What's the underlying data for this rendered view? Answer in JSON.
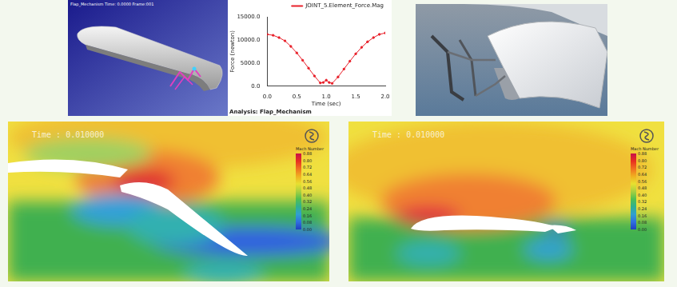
{
  "render": {
    "caption": "Flap_Mechanism   Time: 0.0000   Frame:001"
  },
  "chart_data": {
    "type": "line",
    "title": "Analysis: Flap_Mechanism",
    "x_label": "Time (sec)",
    "y_label": "Force (newton)",
    "x": [
      0.0,
      0.1,
      0.2,
      0.3,
      0.4,
      0.5,
      0.6,
      0.7,
      0.8,
      0.9,
      0.95,
      1.0,
      1.05,
      1.1,
      1.2,
      1.3,
      1.4,
      1.5,
      1.6,
      1.7,
      1.8,
      1.9,
      2.0
    ],
    "series": [
      {
        "name": "JOINT_5.Element_Force.Mag",
        "color": "#e8202a",
        "values": [
          11200,
          11000,
          10500,
          9800,
          8600,
          7200,
          5600,
          3900,
          2200,
          700,
          800,
          1300,
          800,
          600,
          2000,
          3700,
          5400,
          7000,
          8400,
          9600,
          10500,
          11200,
          11500
        ]
      }
    ],
    "xlim": [
      0,
      2
    ],
    "xticks": [
      {
        "value": 0,
        "label": "0.0"
      },
      {
        "value": 0.5,
        "label": "0.5"
      },
      {
        "value": 1,
        "label": "1.0"
      },
      {
        "value": 1.5,
        "label": "1.5"
      },
      {
        "value": 2,
        "label": "2.0"
      }
    ],
    "ylim": [
      0,
      15000
    ],
    "yticks": [
      {
        "value": 0,
        "label": "0.0"
      },
      {
        "value": 5000,
        "label": "5000.0"
      },
      {
        "value": 10000,
        "label": "10000.0"
      },
      {
        "value": 15000,
        "label": "15000.0"
      }
    ],
    "grid": false,
    "legend": "top",
    "marker": "circle"
  },
  "cfd": [
    {
      "time_label": "Time : 0.010000",
      "colorbar_title": "Mach Number",
      "colorbar_labels": [
        "0.88",
        "0.80",
        "0.72",
        "0.64",
        "0.56",
        "0.48",
        "0.40",
        "0.32",
        "0.24",
        "0.16",
        "0.08",
        "0.00"
      ]
    },
    {
      "time_label": "Time : 0.010000",
      "colorbar_title": "Mach Number",
      "colorbar_labels": [
        "0.88",
        "0.80",
        "0.72",
        "0.64",
        "0.56",
        "0.48",
        "0.40",
        "0.32",
        "0.24",
        "0.16",
        "0.08",
        "0.00"
      ]
    }
  ]
}
